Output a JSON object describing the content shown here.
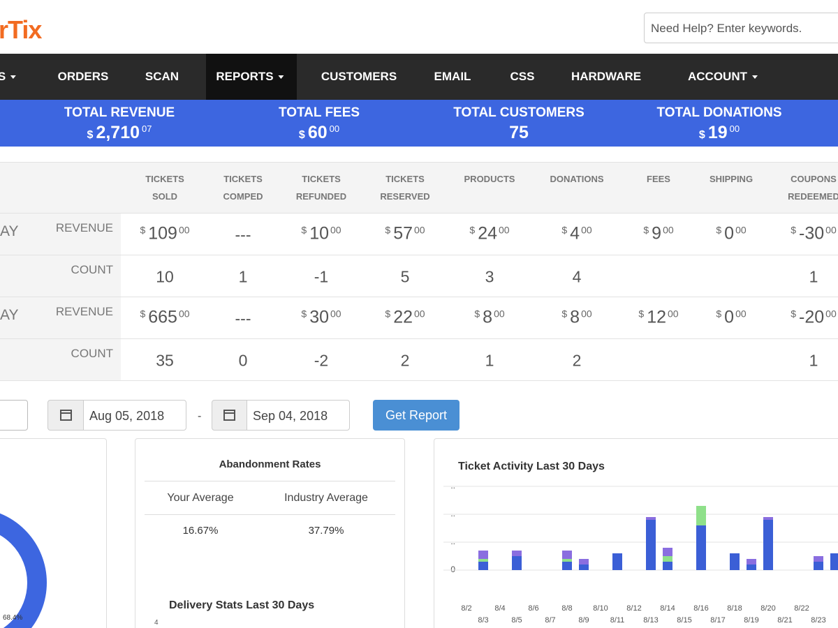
{
  "logo": "rTix",
  "search_placeholder": "Need Help? Enter keywords.",
  "nav": [
    "S",
    "ORDERS",
    "SCAN",
    "REPORTS",
    "CUSTOMERS",
    "EMAIL",
    "CSS",
    "HARDWARE",
    "ACCOUNT"
  ],
  "currency": "$",
  "summary": [
    {
      "label": "TOTAL REVENUE",
      "amount": "2,710",
      "cents": "07"
    },
    {
      "label": "TOTAL FEES",
      "amount": "60",
      "cents": "00"
    },
    {
      "label": "TOTAL CUSTOMERS",
      "amount": "75"
    },
    {
      "label": "TOTAL DONATIONS",
      "amount": "19",
      "cents": "00"
    }
  ],
  "table": {
    "columns": [
      "TICKETS SOLD",
      "TICKETS COMPED",
      "TICKETS REFUNDED",
      "TICKETS RESERVED",
      "PRODUCTS",
      "DONATIONS",
      "FEES",
      "SHIPPING",
      "COUPONS REDEEMED"
    ],
    "groups": [
      {
        "label": "AY",
        "rows": [
          {
            "label": "REVENUE",
            "cells": [
              {
                "amount": "109",
                "cents": "00"
              },
              "---",
              {
                "amount": "10",
                "cents": "00"
              },
              {
                "amount": "57",
                "cents": "00"
              },
              {
                "amount": "24",
                "cents": "00"
              },
              {
                "amount": "4",
                "cents": "00"
              },
              {
                "amount": "9",
                "cents": "00"
              },
              {
                "amount": "0",
                "cents": "00"
              },
              {
                "amount": "-30",
                "cents": "00"
              }
            ]
          },
          {
            "label": "COUNT",
            "cells": [
              10,
              1,
              -1,
              5,
              3,
              4,
              null,
              null,
              1
            ]
          }
        ]
      },
      {
        "label": "AY",
        "rows": [
          {
            "label": "REVENUE",
            "cells": [
              {
                "amount": "665",
                "cents": "00"
              },
              "---",
              {
                "amount": "30",
                "cents": "00"
              },
              {
                "amount": "22",
                "cents": "00"
              },
              {
                "amount": "8",
                "cents": "00"
              },
              {
                "amount": "8",
                "cents": "00"
              },
              {
                "amount": "12",
                "cents": "00"
              },
              {
                "amount": "0",
                "cents": "00"
              },
              {
                "amount": "-20",
                "cents": "00"
              }
            ]
          },
          {
            "label": "COUNT",
            "cells": [
              35,
              0,
              -2,
              2,
              1,
              2,
              null,
              null,
              1
            ]
          }
        ]
      }
    ]
  },
  "filters": {
    "start": "Aug 05, 2018",
    "separator": "-",
    "end": "Sep 04, 2018",
    "button": "Get Report"
  },
  "donut": {
    "label": "68.4%"
  },
  "abandonment": {
    "title": "Abandonment Rates",
    "headers": [
      "Your Average",
      "Industry Average"
    ],
    "values": [
      "16.67%",
      "37.79%"
    ]
  },
  "delivery": {
    "title": "Delivery Stats Last 30 Days",
    "ytick": 4
  },
  "ticket_chart": {
    "type": "bar",
    "stacked": true,
    "title": "Ticket Activity Last 30 Days",
    "categories": [
      "8/2",
      "8/3",
      "8/4",
      "8/5",
      "8/6",
      "8/7",
      "8/8",
      "8/9",
      "8/10",
      "8/11",
      "8/12",
      "8/13",
      "8/14",
      "8/15",
      "8/16",
      "8/17",
      "8/18",
      "8/19",
      "8/20",
      "8/21",
      "8/22",
      "8/23",
      null
    ],
    "series": [
      {
        "color": "#3b5fd6",
        "values": [
          0,
          1.5,
          0,
          2.5,
          0,
          0,
          1.5,
          1,
          0,
          3,
          0,
          9,
          1.5,
          0,
          8,
          0,
          3,
          1,
          9,
          0,
          0,
          1.5,
          3
        ]
      },
      {
        "color": "#8fe08a",
        "values": [
          0,
          0.5,
          0,
          0,
          0,
          0,
          0.5,
          0,
          0,
          0,
          0,
          0,
          1,
          0,
          3.5,
          0,
          0,
          0,
          0,
          0,
          0,
          0,
          0
        ]
      },
      {
        "color": "#8a6ee0",
        "values": [
          0,
          1.5,
          0,
          1,
          0,
          0,
          1.5,
          1,
          0,
          0,
          0,
          0.5,
          1.5,
          0,
          0,
          0,
          0,
          1,
          0.5,
          0,
          0,
          1,
          0
        ]
      }
    ],
    "ylim": [
      0,
      15
    ],
    "yticks": [
      0,
      {
        "value": 5,
        "label": ".."
      },
      {
        "value": 10,
        "label": ".."
      },
      {
        "value": 15,
        "label": ".."
      }
    ],
    "grid": true
  }
}
